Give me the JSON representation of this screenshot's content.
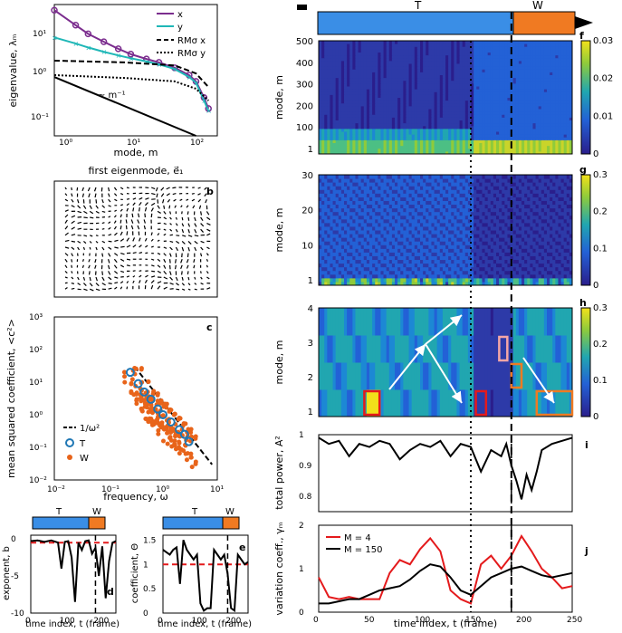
{
  "colors": {
    "x_series": "#7b2d8e",
    "y_series": "#1fb7b7",
    "T_bar": "#3a8ee6",
    "W_bar": "#f07a22",
    "T_marker": "#1f77b4",
    "W_marker": "#e8641a",
    "dashed_red": "#e41a1c",
    "m4_line": "#e41a1c",
    "m150_line": "#000000",
    "heatmap_low": "#2a1e8c",
    "heatmap_mid": "#21a6b0",
    "heatmap_high": "#f2e11a"
  },
  "timeline": {
    "T_label": "T",
    "W_label": "W",
    "split": 190,
    "total": 250
  },
  "panel_labels": {
    "a": "a",
    "b": "b",
    "c": "c",
    "d": "d",
    "e": "e",
    "f": "f",
    "g": "g",
    "h": "h",
    "i": "i",
    "j": "j"
  },
  "panel_b": {
    "title": "first eigenmode, e⃗₁",
    "icon": "quiver-field-icon"
  },
  "chart_data": [
    {
      "id": "a",
      "type": "line",
      "xlabel": "mode, m",
      "ylabel": "eigenvalue, λₘ",
      "xscale": "log",
      "yscale": "log",
      "xlim": [
        1,
        200
      ],
      "ylim": [
        0.05,
        40
      ],
      "xticks": [
        "10⁰",
        "10¹",
        "10²"
      ],
      "yticks": [
        "10⁻¹",
        "10⁰",
        "10¹"
      ],
      "annotation": "~ m⁻¹",
      "series": [
        {
          "name": "x",
          "x": [
            1,
            2,
            3,
            5,
            8,
            12,
            20,
            30,
            50,
            80,
            100,
            130,
            150
          ],
          "y": [
            30,
            14,
            9,
            6,
            4.2,
            3.2,
            2.5,
            2.1,
            1.6,
            1.1,
            0.8,
            0.35,
            0.2
          ]
        },
        {
          "name": "y",
          "x": [
            1,
            2,
            3,
            5,
            8,
            12,
            20,
            30,
            50,
            80,
            100,
            130,
            150
          ],
          "y": [
            7.5,
            5.5,
            4.5,
            3.6,
            3,
            2.6,
            2.2,
            1.9,
            1.5,
            1,
            0.75,
            0.3,
            0.18
          ]
        },
        {
          "name": "RMσ x",
          "x": [
            1,
            10,
            50,
            100,
            150
          ],
          "y": [
            2.3,
            2.1,
            1.8,
            1.2,
            0.6
          ]
        },
        {
          "name": "RMσ y",
          "x": [
            1,
            10,
            50,
            100,
            150
          ],
          "y": [
            1.1,
            0.95,
            0.8,
            0.55,
            0.3
          ]
        }
      ],
      "reference_line": {
        "x": [
          1,
          100
        ],
        "y": [
          1,
          0.01
        ]
      }
    },
    {
      "id": "c",
      "type": "scatter",
      "xlabel": "frequency, ω",
      "ylabel": "mean squared coefficient, <c²>",
      "xscale": "log",
      "yscale": "log",
      "xlim": [
        0.01,
        10
      ],
      "ylim": [
        0.01,
        1000
      ],
      "xticks": [
        "10⁻²",
        "10⁻¹",
        "10⁰",
        "10¹"
      ],
      "yticks": [
        "10⁻²",
        "10⁻¹",
        "10⁰",
        "10¹",
        "10²",
        "10³"
      ],
      "legend": [
        "1/ω²",
        "T",
        "W"
      ],
      "series": [
        {
          "name": "T",
          "x": [
            0.25,
            0.35,
            0.45,
            0.6,
            0.8,
            1.0,
            1.4,
            2,
            2.5,
            3
          ],
          "y": [
            20,
            9,
            5,
            3,
            1.5,
            1,
            0.6,
            0.35,
            0.25,
            0.15
          ]
        },
        {
          "name": "W",
          "x": [
            0.3,
            0.4,
            0.5,
            0.6,
            0.7,
            0.9,
            1.1,
            1.3,
            1.6,
            2,
            2.5,
            3
          ],
          "y": [
            15,
            6,
            3,
            2.5,
            1.5,
            1.2,
            0.8,
            0.6,
            0.45,
            0.3,
            0.2,
            0.12
          ]
        }
      ]
    },
    {
      "id": "d",
      "type": "line",
      "xlabel": "time index, t (frame)",
      "ylabel": "exponent, b",
      "xlim": [
        0,
        250
      ],
      "ylim": [
        -10,
        0.5
      ],
      "xticks": [
        "0",
        "100",
        "200"
      ],
      "yticks": [
        "-10",
        "-5",
        "0"
      ],
      "series": [
        {
          "name": "",
          "x": [
            0,
            20,
            40,
            60,
            80,
            90,
            100,
            110,
            120,
            130,
            140,
            150,
            160,
            170,
            180,
            190,
            200,
            210,
            220,
            230,
            240,
            250
          ],
          "y": [
            -0.3,
            -0.2,
            -0.4,
            -0.2,
            -0.5,
            -4,
            -0.4,
            -0.3,
            -2.5,
            -8.5,
            -0.5,
            -1.5,
            -0.3,
            -0.2,
            -2,
            -1.2,
            -5,
            -1,
            -8,
            -3,
            -0.5,
            -0.3
          ]
        }
      ],
      "threshold": -0.5
    },
    {
      "id": "e",
      "type": "line",
      "xlabel": "time index, t (frame)",
      "ylabel": "coefficient, Θ",
      "xlim": [
        0,
        250
      ],
      "ylim": [
        0,
        1.6
      ],
      "xticks": [
        "0",
        "100",
        "200"
      ],
      "yticks": [
        "0",
        "0.5",
        "1",
        "1.5"
      ],
      "series": [
        {
          "name": "",
          "x": [
            0,
            10,
            20,
            30,
            40,
            50,
            60,
            70,
            80,
            90,
            100,
            110,
            120,
            130,
            140,
            150,
            160,
            170,
            180,
            190,
            200,
            210,
            220,
            230,
            240,
            250
          ],
          "y": [
            1.3,
            1.25,
            1.2,
            1.3,
            1.35,
            0.6,
            1.5,
            1.3,
            1.2,
            1.1,
            1.2,
            0.2,
            0.05,
            0.1,
            0.1,
            1.3,
            1.2,
            1.1,
            1.2,
            0.8,
            0.1,
            0.05,
            1.2,
            1.1,
            1.0,
            1.05
          ]
        }
      ],
      "threshold": 1
    },
    {
      "id": "f",
      "type": "heatmap",
      "ylabel": "mode, m",
      "xlim": [
        0,
        250
      ],
      "ylim": [
        1,
        540
      ],
      "yticks": [
        "1",
        "100",
        "200",
        "300",
        "400",
        "500"
      ],
      "colorbar": [
        0,
        0.03
      ],
      "colorbar_ticks": [
        "0",
        "0.01",
        "0.02",
        "0.03"
      ]
    },
    {
      "id": "g",
      "type": "heatmap",
      "ylabel": "mode, m",
      "xlim": [
        0,
        250
      ],
      "ylim": [
        1,
        30
      ],
      "yticks": [
        "1",
        "10",
        "20",
        "30"
      ],
      "colorbar": [
        0,
        0.3
      ],
      "colorbar_ticks": [
        "0",
        "0.1",
        "0.2",
        "0.3"
      ]
    },
    {
      "id": "h",
      "type": "heatmap",
      "ylabel": "mode, m",
      "xlim": [
        0,
        250
      ],
      "ylim": [
        0.5,
        4.5
      ],
      "yticks": [
        "1",
        "2",
        "3",
        "4"
      ],
      "colorbar": [
        0,
        0.3
      ],
      "colorbar_ticks": [
        "0",
        "0.1",
        "0.2",
        "0.3"
      ],
      "highlight_boxes": [
        {
          "t": [
            45,
            60
          ],
          "m": 1,
          "color": "#e41a1c"
        },
        {
          "t": [
            155,
            165
          ],
          "m": 1,
          "color": "#e41a1c"
        },
        {
          "t": [
            178,
            186
          ],
          "m": 3,
          "color": "#f4a6a6"
        },
        {
          "t": [
            190,
            200
          ],
          "m": 2,
          "color": "#f07a22"
        },
        {
          "t": [
            215,
            250
          ],
          "m": 1,
          "color": "#f07a22"
        }
      ]
    },
    {
      "id": "i",
      "type": "line",
      "ylabel": "total power, A²",
      "xlim": [
        0,
        250
      ],
      "ylim": [
        0.75,
        1
      ],
      "yticks": [
        "0.8",
        "0.9",
        "1"
      ],
      "series": [
        {
          "name": "",
          "x": [
            0,
            10,
            20,
            30,
            40,
            50,
            60,
            70,
            80,
            90,
            100,
            110,
            120,
            130,
            140,
            150,
            155,
            160,
            170,
            180,
            185,
            190,
            195,
            200,
            205,
            210,
            215,
            220,
            230,
            240,
            250
          ],
          "y": [
            0.99,
            0.97,
            0.98,
            0.93,
            0.97,
            0.96,
            0.98,
            0.97,
            0.92,
            0.95,
            0.97,
            0.96,
            0.98,
            0.93,
            0.97,
            0.96,
            0.92,
            0.88,
            0.95,
            0.93,
            0.97,
            0.9,
            0.85,
            0.79,
            0.87,
            0.82,
            0.88,
            0.95,
            0.97,
            0.98,
            0.99
          ]
        }
      ]
    },
    {
      "id": "j",
      "type": "line",
      "xlabel": "time index, t (frame)",
      "ylabel": "variation coeff., γₘ",
      "xlim": [
        0,
        250
      ],
      "ylim": [
        0,
        2
      ],
      "xticks": [
        "0",
        "50",
        "100",
        "150",
        "200",
        "250"
      ],
      "yticks": [
        "0",
        "1",
        "2"
      ],
      "legend": [
        "M = 4",
        "M = 150"
      ],
      "series": [
        {
          "name": "M = 4",
          "x": [
            0,
            10,
            20,
            30,
            40,
            50,
            60,
            70,
            80,
            90,
            100,
            110,
            120,
            130,
            140,
            150,
            160,
            170,
            180,
            190,
            200,
            210,
            220,
            230,
            240,
            250
          ],
          "y": [
            0.8,
            0.35,
            0.3,
            0.35,
            0.3,
            0.3,
            0.3,
            0.9,
            1.2,
            1.1,
            1.45,
            1.7,
            1.4,
            0.5,
            0.3,
            0.2,
            1.1,
            1.3,
            1.0,
            1.3,
            1.75,
            1.4,
            1.0,
            0.8,
            0.55,
            0.6
          ]
        },
        {
          "name": "M = 150",
          "x": [
            0,
            10,
            20,
            30,
            40,
            50,
            60,
            70,
            80,
            90,
            100,
            110,
            120,
            130,
            140,
            150,
            160,
            170,
            180,
            190,
            200,
            210,
            220,
            230,
            240,
            250
          ],
          "y": [
            0.2,
            0.2,
            0.25,
            0.3,
            0.3,
            0.4,
            0.5,
            0.55,
            0.6,
            0.75,
            0.95,
            1.1,
            1.05,
            0.8,
            0.5,
            0.4,
            0.6,
            0.8,
            0.9,
            1.0,
            1.05,
            0.95,
            0.85,
            0.8,
            0.85,
            0.9
          ]
        }
      ]
    }
  ]
}
